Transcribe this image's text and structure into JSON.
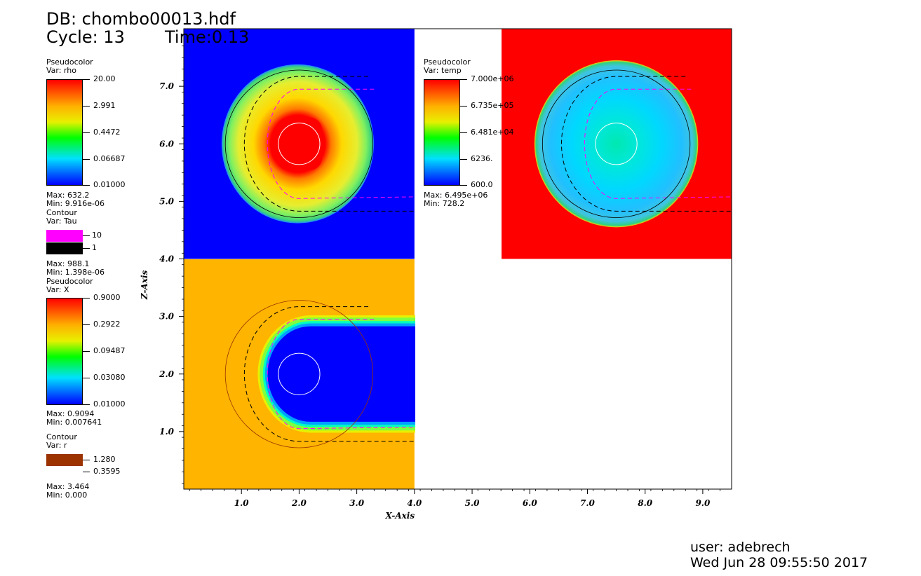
{
  "header": {
    "db_line": "DB: chombo00013.hdf",
    "cycle_line": "Cycle: 13",
    "time_line": "Time:0.13"
  },
  "legends": {
    "rho": {
      "plot_type": "Pseudocolor",
      "var": "Var: rho",
      "ticks": [
        "20.00",
        "2.991",
        "0.4472",
        "0.06687",
        "0.01000"
      ],
      "max": "Max: 632.2",
      "min": "Min: 9.916e-06"
    },
    "tau": {
      "plot_type": "Contour",
      "var": "Var: Tau",
      "levels": [
        "10",
        "1"
      ],
      "colors": [
        "#ff00ff",
        "#000000"
      ],
      "max": "Max: 988.1",
      "min": "Min: 1.398e-06"
    },
    "x": {
      "plot_type": "Pseudocolor",
      "var": "Var: X",
      "ticks": [
        "0.9000",
        "0.2922",
        "0.09487",
        "0.03080",
        "0.01000"
      ],
      "max": "Max: 0.9094",
      "min": "Min: 0.007641"
    },
    "r": {
      "plot_type": "Contour",
      "var": "Var: r",
      "levels": [
        "1.280",
        "0.3595"
      ],
      "colors": [
        "#9b3200",
        "#000000"
      ],
      "max": "Max: 3.464",
      "min": "Min: 0.000"
    },
    "temp": {
      "plot_type": "Pseudocolor",
      "var": "Var: temp",
      "ticks": [
        "7.000e+06",
        "6.735e+05",
        "6.481e+04",
        "6236.",
        "600.0"
      ],
      "max": "Max: 6.495e+06",
      "min": "Min: 728.2"
    }
  },
  "chart_data": {
    "type": "heatmap",
    "xlabel": "X-Axis",
    "ylabel": "Z-Axis",
    "xlim": [
      0,
      9.5
    ],
    "ylim": [
      0,
      8.0
    ],
    "x_ticks": [
      "1.0",
      "2.0",
      "3.0",
      "4.0",
      "5.0",
      "6.0",
      "7.0",
      "8.0",
      "9.0"
    ],
    "y_ticks": [
      "1.0",
      "2.0",
      "3.0",
      "4.0",
      "5.0",
      "6.0",
      "7.0"
    ],
    "panels": [
      {
        "var": "rho",
        "x_range": [
          0,
          4
        ],
        "z_range": [
          4,
          8
        ],
        "center": [
          2.0,
          6.0
        ],
        "background": "#0000ff"
      },
      {
        "var": "X",
        "x_range": [
          0,
          4
        ],
        "z_range": [
          0,
          4
        ],
        "center": [
          2.0,
          2.0
        ],
        "background": "#ffb400"
      },
      {
        "var": "temp",
        "x_range": [
          5.5,
          9.5
        ],
        "z_range": [
          4,
          8
        ],
        "center": [
          7.5,
          6.0
        ],
        "background": "#ff0000"
      }
    ],
    "colors": {
      "tau_10": "#ff00ff",
      "tau_1": "#000000",
      "r_1280": "#9b3200",
      "r_03595": "#000000"
    }
  },
  "footer": {
    "user": "user: adebrech",
    "date": "Wed Jun 28 09:55:50 2017"
  }
}
